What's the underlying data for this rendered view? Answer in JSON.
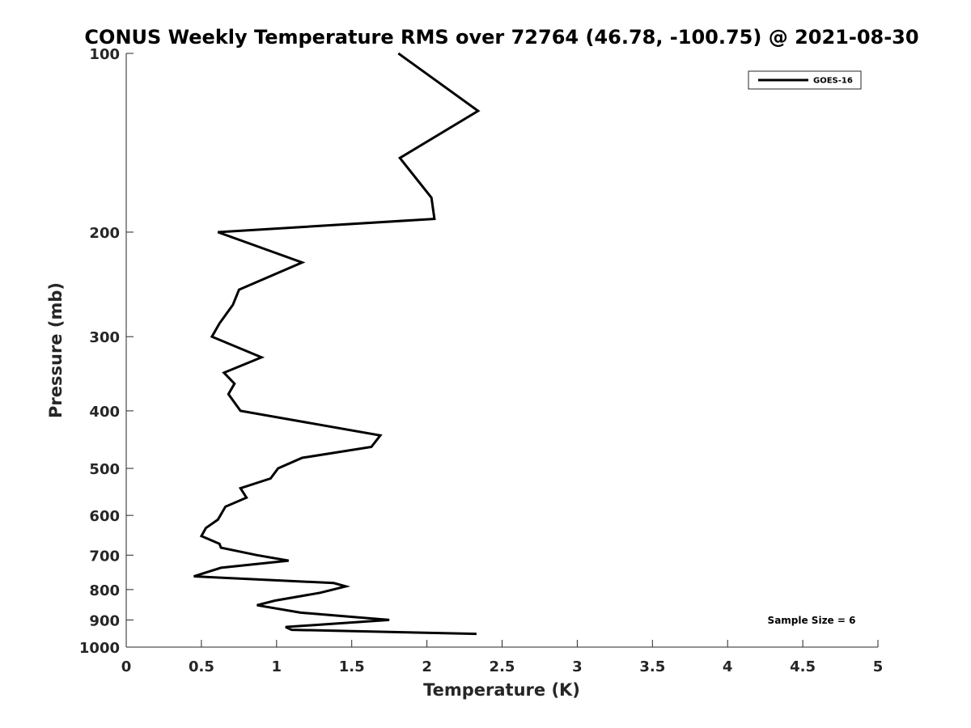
{
  "chart_data": {
    "type": "line",
    "title": "CONUS Weekly Temperature RMS over 72764 (46.78, -100.75) @ 2021-08-30",
    "xlabel": "Temperature (K)",
    "ylabel": "Pressure (mb)",
    "xlim": [
      0,
      5
    ],
    "ylim": [
      100,
      1000
    ],
    "y_scale": "log",
    "y_reversed": true,
    "x_ticks": [
      "0",
      "0.5",
      "1",
      "1.5",
      "2",
      "2.5",
      "3",
      "3.5",
      "4",
      "4.5",
      "5"
    ],
    "y_ticks": [
      "100",
      "200",
      "300",
      "400",
      "500",
      "600",
      "700",
      "800",
      "900",
      "1000"
    ],
    "legend_position": "top-right",
    "grid": false,
    "annotation": "Sample Size = 6",
    "series": [
      {
        "name": "GOES-16",
        "color": "#000000",
        "points": [
          [
            1.81,
            100
          ],
          [
            2.34,
            125
          ],
          [
            1.82,
            150
          ],
          [
            2.03,
            175
          ],
          [
            2.05,
            190
          ],
          [
            0.61,
            200
          ],
          [
            1.17,
            225
          ],
          [
            0.75,
            250
          ],
          [
            0.71,
            265
          ],
          [
            0.62,
            285
          ],
          [
            0.57,
            300
          ],
          [
            0.9,
            325
          ],
          [
            0.65,
            345
          ],
          [
            0.72,
            360
          ],
          [
            0.68,
            375
          ],
          [
            0.76,
            400
          ],
          [
            1.69,
            440
          ],
          [
            1.63,
            460
          ],
          [
            1.17,
            480
          ],
          [
            1.01,
            500
          ],
          [
            0.96,
            520
          ],
          [
            0.76,
            540
          ],
          [
            0.8,
            560
          ],
          [
            0.66,
            580
          ],
          [
            0.61,
            610
          ],
          [
            0.53,
            630
          ],
          [
            0.5,
            650
          ],
          [
            0.62,
            670
          ],
          [
            0.63,
            680
          ],
          [
            0.87,
            700
          ],
          [
            1.08,
            715
          ],
          [
            0.63,
            735
          ],
          [
            0.45,
            760
          ],
          [
            1.38,
            780
          ],
          [
            1.46,
            790
          ],
          [
            1.29,
            810
          ],
          [
            0.99,
            835
          ],
          [
            0.87,
            850
          ],
          [
            1.16,
            875
          ],
          [
            1.75,
            900
          ],
          [
            1.06,
            925
          ],
          [
            1.1,
            935
          ],
          [
            2.33,
            950
          ]
        ]
      }
    ]
  }
}
